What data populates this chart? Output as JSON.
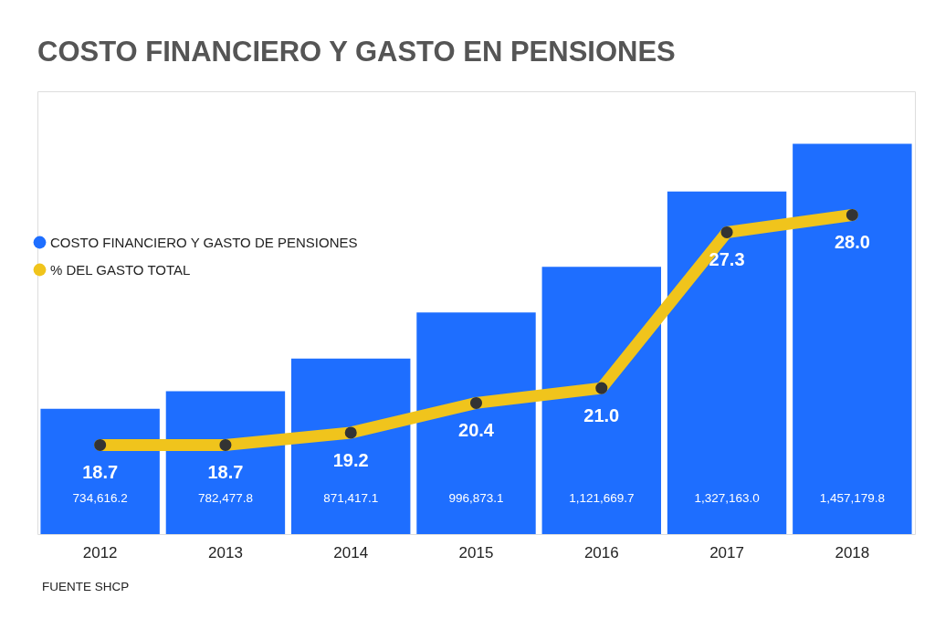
{
  "chart_data": {
    "type": "bar",
    "title": "COSTO FINANCIERO Y GASTO EN PENSIONES",
    "categories": [
      "2012",
      "2013",
      "2014",
      "2015",
      "2016",
      "2017",
      "2018"
    ],
    "series": [
      {
        "name": "COSTO FINANCIERO Y GASTO DE PENSIONES",
        "color": "#1e6eff",
        "values": [
          734616.2,
          782477.8,
          871417.1,
          996873.1,
          1121669.7,
          1327163.0,
          1457179.8
        ],
        "value_labels": [
          "734,616.2",
          "782,477.8",
          "871,417.1",
          "996,873.1",
          "1,121,669.7",
          "1,327,163.0",
          "1,457,179.8"
        ]
      },
      {
        "name": "% DEL GASTO TOTAL",
        "type": "line",
        "axis": "y2",
        "color": "#f0c41c",
        "marker": "circle",
        "line_style": "solid",
        "values": [
          18.7,
          18.7,
          19.2,
          20.4,
          21.0,
          27.3,
          28.0
        ],
        "value_labels": [
          "18.7",
          "18.7",
          "19.2",
          "20.4",
          "21.0",
          "27.3",
          "28.0"
        ]
      }
    ],
    "ylim": [
      393000,
      1600000
    ],
    "y2lim": [
      15.1,
      33.0
    ],
    "tick_labels": "x",
    "legend": "top left",
    "annotations": [
      "FUENTE SHCP"
    ]
  }
}
